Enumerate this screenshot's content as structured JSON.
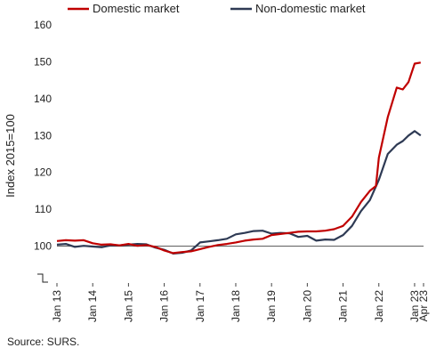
{
  "chart_data": {
    "type": "line",
    "ylabel": "Index 2015=100",
    "ylim": [
      90,
      160
    ],
    "yticks": [
      160,
      150,
      140,
      130,
      120,
      110,
      100
    ],
    "xlim": [
      2013.0,
      2023.25
    ],
    "xticks": [
      {
        "label": "Jan 13",
        "x": 2013.0
      },
      {
        "label": "Jan 14",
        "x": 2014.0
      },
      {
        "label": "Jan 15",
        "x": 2015.0
      },
      {
        "label": "Jan 16",
        "x": 2016.0
      },
      {
        "label": "Jan 17",
        "x": 2017.0
      },
      {
        "label": "Jan 18",
        "x": 2018.0
      },
      {
        "label": "Jan 19",
        "x": 2019.0
      },
      {
        "label": "Jan 20",
        "x": 2020.0
      },
      {
        "label": "Jan 21",
        "x": 2021.0
      },
      {
        "label": "Jan 22",
        "x": 2022.0
      },
      {
        "label": "Jan 23",
        "x": 2023.0
      },
      {
        "label": "Apr 23",
        "x": 2023.25
      }
    ],
    "reference_line": 100,
    "legend_position": "top",
    "axis_break": true,
    "series": [
      {
        "name": "Domestic market",
        "color": "#c00000",
        "points": [
          [
            2013.0,
            101.4
          ],
          [
            2013.25,
            101.6
          ],
          [
            2013.5,
            101.5
          ],
          [
            2013.75,
            101.6
          ],
          [
            2014.0,
            100.8
          ],
          [
            2014.25,
            100.4
          ],
          [
            2014.5,
            100.5
          ],
          [
            2014.75,
            100.2
          ],
          [
            2015.0,
            100.6
          ],
          [
            2015.25,
            100.1
          ],
          [
            2015.5,
            100.3
          ],
          [
            2015.75,
            99.8
          ],
          [
            2016.0,
            98.8
          ],
          [
            2016.25,
            98.1
          ],
          [
            2016.5,
            98.4
          ],
          [
            2016.75,
            98.6
          ],
          [
            2017.0,
            99.2
          ],
          [
            2017.25,
            99.8
          ],
          [
            2017.5,
            100.3
          ],
          [
            2017.75,
            100.6
          ],
          [
            2018.0,
            101.0
          ],
          [
            2018.25,
            101.5
          ],
          [
            2018.5,
            101.8
          ],
          [
            2018.75,
            102.0
          ],
          [
            2019.0,
            103.0
          ],
          [
            2019.25,
            103.3
          ],
          [
            2019.5,
            103.6
          ],
          [
            2019.75,
            103.9
          ],
          [
            2020.0,
            104.0
          ],
          [
            2020.25,
            104.0
          ],
          [
            2020.5,
            104.2
          ],
          [
            2020.75,
            104.6
          ],
          [
            2021.0,
            105.5
          ],
          [
            2021.25,
            108.0
          ],
          [
            2021.5,
            112.0
          ],
          [
            2021.75,
            115.0
          ],
          [
            2021.92,
            116.3
          ],
          [
            2022.0,
            124.0
          ],
          [
            2022.25,
            135.0
          ],
          [
            2022.5,
            143.0
          ],
          [
            2022.67,
            142.5
          ],
          [
            2022.83,
            144.5
          ],
          [
            2023.0,
            149.5
          ],
          [
            2023.17,
            149.8
          ]
        ]
      },
      {
        "name": "Non-domestic market",
        "color": "#2e3a54",
        "points": [
          [
            2013.0,
            100.4
          ],
          [
            2013.25,
            100.6
          ],
          [
            2013.5,
            99.8
          ],
          [
            2013.75,
            100.1
          ],
          [
            2014.0,
            99.9
          ],
          [
            2014.25,
            99.7
          ],
          [
            2014.5,
            100.2
          ],
          [
            2014.75,
            100.2
          ],
          [
            2015.0,
            100.4
          ],
          [
            2015.25,
            100.6
          ],
          [
            2015.5,
            100.5
          ],
          [
            2015.75,
            99.6
          ],
          [
            2016.0,
            99.0
          ],
          [
            2016.25,
            98.0
          ],
          [
            2016.5,
            98.2
          ],
          [
            2016.75,
            98.8
          ],
          [
            2017.0,
            101.0
          ],
          [
            2017.25,
            101.3
          ],
          [
            2017.5,
            101.6
          ],
          [
            2017.75,
            102.0
          ],
          [
            2018.0,
            103.2
          ],
          [
            2018.25,
            103.6
          ],
          [
            2018.5,
            104.1
          ],
          [
            2018.75,
            104.2
          ],
          [
            2019.0,
            103.4
          ],
          [
            2019.25,
            103.6
          ],
          [
            2019.5,
            103.5
          ],
          [
            2019.75,
            102.5
          ],
          [
            2020.0,
            102.8
          ],
          [
            2020.25,
            101.5
          ],
          [
            2020.5,
            101.8
          ],
          [
            2020.75,
            101.7
          ],
          [
            2021.0,
            103.0
          ],
          [
            2021.25,
            105.5
          ],
          [
            2021.5,
            109.5
          ],
          [
            2021.75,
            112.5
          ],
          [
            2022.0,
            118.0
          ],
          [
            2022.25,
            125.0
          ],
          [
            2022.5,
            127.5
          ],
          [
            2022.67,
            128.5
          ],
          [
            2022.83,
            130.0
          ],
          [
            2023.0,
            131.2
          ],
          [
            2023.17,
            130.0
          ]
        ]
      }
    ]
  },
  "source": "Source: SURS."
}
